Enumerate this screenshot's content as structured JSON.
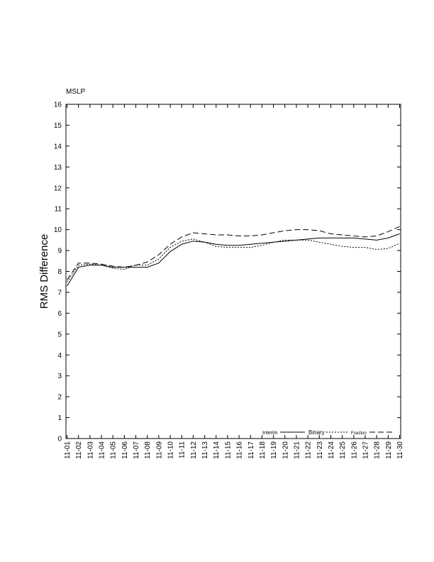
{
  "chart_data": {
    "type": "line",
    "title": "MSLP",
    "xlabel": "",
    "ylabel": "RMS Difference",
    "ylim": [
      0,
      16
    ],
    "yticks": [
      "0",
      "1",
      "2",
      "3",
      "4",
      "5",
      "6",
      "7",
      "8",
      "9",
      "10",
      "11",
      "12",
      "13",
      "14",
      "15",
      "16"
    ],
    "categories": [
      "11-01",
      "11-02",
      "11-03",
      "11-04",
      "11-05",
      "11-06",
      "11-07",
      "11-08",
      "11-09",
      "11-10",
      "11-11",
      "11-12",
      "11-13",
      "11-14",
      "11-15",
      "11-16",
      "11-17",
      "11-18",
      "11-19",
      "11-20",
      "11-21",
      "11-22",
      "11-23",
      "11-24",
      "11-25",
      "11-26",
      "11-27",
      "11-28",
      "11-29",
      "11-30"
    ],
    "grid": false,
    "legend_position": "bottom-right",
    "series": [
      {
        "name": "Interim",
        "style": "solid",
        "color": "#000000",
        "values": [
          7.3,
          8.2,
          8.3,
          8.3,
          8.2,
          8.2,
          8.2,
          8.2,
          8.4,
          8.95,
          9.3,
          9.45,
          9.4,
          9.3,
          9.25,
          9.25,
          9.3,
          9.35,
          9.4,
          9.45,
          9.5,
          9.55,
          9.6,
          9.6,
          9.6,
          9.6,
          9.55,
          9.5,
          9.6,
          9.8
        ]
      },
      {
        "name": "Binary",
        "style": "dotted",
        "color": "#000000",
        "values": [
          7.5,
          8.3,
          8.35,
          8.3,
          8.15,
          8.1,
          8.3,
          8.3,
          8.6,
          9.15,
          9.45,
          9.55,
          9.4,
          9.2,
          9.15,
          9.15,
          9.15,
          9.25,
          9.4,
          9.5,
          9.5,
          9.5,
          9.4,
          9.3,
          9.2,
          9.15,
          9.15,
          9.05,
          9.1,
          9.35
        ]
      },
      {
        "name": "Fraction",
        "style": "dashed",
        "color": "#000000",
        "values": [
          7.6,
          8.4,
          8.4,
          8.35,
          8.25,
          8.2,
          8.3,
          8.45,
          8.8,
          9.3,
          9.65,
          9.85,
          9.8,
          9.75,
          9.75,
          9.7,
          9.7,
          9.75,
          9.85,
          9.95,
          10.0,
          10.0,
          9.95,
          9.8,
          9.75,
          9.7,
          9.65,
          9.7,
          9.9,
          10.15
        ]
      }
    ]
  }
}
